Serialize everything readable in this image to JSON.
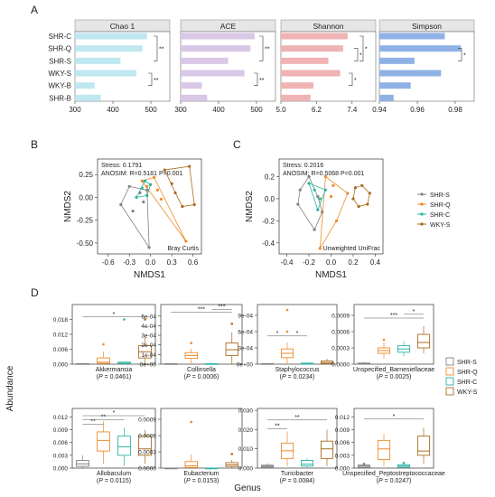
{
  "panels": {
    "A": "A",
    "B": "B",
    "C": "C",
    "D": "D"
  },
  "colors": {
    "chao1": "#bfe7f0",
    "ace": "#d9c7e6",
    "shannon": "#f0b3b3",
    "simpson": "#8fb2e6",
    "shr_s": "#808080",
    "shr_q": "#ee8a2a",
    "shr_c": "#2ab3a3",
    "wky_s": "#a86b1f"
  },
  "panelA": {
    "groups": [
      "SHR-C",
      "SHR-Q",
      "SHR-S",
      "WKY-S",
      "WKY-B",
      "SHR-B"
    ],
    "facets": [
      {
        "name": "Chao 1",
        "key": "chao1",
        "min": 300,
        "max": 550,
        "ticks": [
          "300",
          "400",
          "500"
        ],
        "tickVals": [
          300,
          400,
          500
        ],
        "values": [
          490,
          478,
          420,
          462,
          352,
          368
        ],
        "sig": [
          {
            "from": 0,
            "to": 2,
            "label": "**"
          },
          {
            "from": 3,
            "to": 4,
            "label": "**"
          }
        ]
      },
      {
        "name": "ACE",
        "key": "ace",
        "min": 300,
        "max": 550,
        "ticks": [
          "300",
          "400",
          "500"
        ],
        "tickVals": [
          300,
          400,
          500
        ],
        "values": [
          495,
          484,
          425,
          468,
          356,
          370
        ],
        "sig": [
          {
            "from": 0,
            "to": 2,
            "label": "**"
          },
          {
            "from": 3,
            "to": 4,
            "label": "**"
          }
        ]
      },
      {
        "name": "Shannon",
        "key": "shannon",
        "min": 5.0,
        "max": 8.2,
        "ticks": [
          "5.0",
          "6.2",
          "7.4"
        ],
        "tickVals": [
          5.0,
          6.2,
          7.4
        ],
        "values": [
          7.25,
          7.1,
          6.6,
          7.0,
          6.1,
          6.0
        ],
        "sig": [
          {
            "from": 0,
            "to": 2,
            "label": "*"
          },
          {
            "from": 1,
            "to": 2,
            "label": "*"
          },
          {
            "from": 3,
            "to": 4,
            "label": "*"
          }
        ]
      },
      {
        "name": "Simpson",
        "key": "simpson",
        "min": 0.94,
        "max": 0.99,
        "ticks": [
          "0.94",
          "0.96",
          "0.98"
        ],
        "tickVals": [
          0.94,
          0.96,
          0.98
        ],
        "values": [
          0.9745,
          0.983,
          0.9585,
          0.9725,
          0.9565,
          0.9475
        ],
        "sig": [
          {
            "from": 1,
            "to": 2,
            "label": "*"
          }
        ]
      }
    ]
  },
  "panelB": {
    "stress": "Stress: 0.1791",
    "anosim": "ANOSIM: R=0.5181  P=0.001",
    "method": "Bray Curtis",
    "xlabel": "NMDS1",
    "ylabel": "NMDS2",
    "xticks": [
      "-0.6",
      "-0.3",
      "0.0",
      "0.3",
      "0.6"
    ],
    "xtickVals": [
      -0.6,
      -0.3,
      0.0,
      0.3,
      0.6
    ],
    "yticks": [
      "0.25",
      "0.00",
      "-0.25",
      "-0.50"
    ],
    "ytickVals": [
      0.25,
      0.0,
      -0.25,
      -0.5
    ],
    "xlim": [
      -0.75,
      0.72
    ],
    "ylim": [
      -0.62,
      0.42
    ],
    "groups": [
      {
        "name": "SHR-S",
        "color": "shr_s",
        "points": [
          [
            -0.42,
            -0.08
          ],
          [
            -0.3,
            0.12
          ],
          [
            -0.25,
            -0.15
          ],
          [
            -0.1,
            -0.05
          ],
          [
            -0.02,
            -0.55
          ],
          [
            -0.15,
            0.05
          ],
          [
            -0.05,
            0.08
          ]
        ]
      },
      {
        "name": "SHR-Q",
        "color": "shr_q",
        "points": [
          [
            -0.12,
            0.18
          ],
          [
            -0.05,
            0.12
          ],
          [
            0.05,
            0.22
          ],
          [
            0.5,
            -0.48
          ],
          [
            0.15,
            -0.02
          ],
          [
            0.1,
            0.08
          ]
        ]
      },
      {
        "name": "SHR-C",
        "color": "shr_c",
        "points": [
          [
            -0.2,
            0.0
          ],
          [
            -0.12,
            0.1
          ],
          [
            -0.08,
            0.18
          ],
          [
            -0.05,
            0.02
          ],
          [
            0.0,
            0.14
          ]
        ]
      },
      {
        "name": "WKY-S",
        "color": "wky_s",
        "points": [
          [
            0.2,
            0.3
          ],
          [
            0.55,
            0.34
          ],
          [
            0.62,
            -0.08
          ],
          [
            0.45,
            -0.1
          ],
          [
            0.35,
            0.05
          ],
          [
            0.3,
            0.15
          ]
        ]
      }
    ]
  },
  "panelC": {
    "stress": "Stress: 0.2016",
    "anosim": "ANOSIM: R=0.5068  P=0.001",
    "method": "Unweighted UniFrac",
    "xlabel": "NMDS1",
    "ylabel": "NMDS2",
    "xticks": [
      "-0.4",
      "-0.2",
      "0.0",
      "0.2",
      "0.4"
    ],
    "xtickVals": [
      -0.4,
      -0.2,
      0.0,
      0.2,
      0.4
    ],
    "yticks": [
      "0.2",
      "0.0",
      "-0.2",
      "-0.4"
    ],
    "ytickVals": [
      0.2,
      0.0,
      -0.2,
      -0.4
    ],
    "xlim": [
      -0.47,
      0.47
    ],
    "ylim": [
      -0.5,
      0.36
    ],
    "groups": [
      {
        "name": "SHR-S",
        "color": "shr_s",
        "points": [
          [
            -0.28,
            0.08
          ],
          [
            -0.3,
            -0.05
          ],
          [
            -0.15,
            -0.28
          ],
          [
            -0.08,
            -0.12
          ],
          [
            -0.2,
            0.2
          ],
          [
            -0.12,
            0.02
          ]
        ]
      },
      {
        "name": "SHR-Q",
        "color": "shr_q",
        "points": [
          [
            -0.05,
            0.2
          ],
          [
            0.02,
            0.12
          ],
          [
            0.15,
            0.05
          ],
          [
            -0.1,
            -0.45
          ],
          [
            0.05,
            -0.2
          ],
          [
            0.0,
            0.02
          ]
        ]
      },
      {
        "name": "SHR-C",
        "color": "shr_c",
        "points": [
          [
            -0.2,
            0.14
          ],
          [
            -0.15,
            0.08
          ],
          [
            -0.1,
            0.0
          ],
          [
            -0.05,
            0.08
          ],
          [
            -0.12,
            -0.1
          ]
        ]
      },
      {
        "name": "WKY-S",
        "color": "wky_s",
        "points": [
          [
            0.2,
            0.0
          ],
          [
            0.22,
            0.1
          ],
          [
            0.28,
            0.12
          ],
          [
            0.35,
            0.05
          ],
          [
            0.33,
            -0.05
          ],
          [
            0.25,
            -0.07
          ]
        ]
      }
    ]
  },
  "legend": [
    "SHR-S",
    "SHR-Q",
    "SHR-C",
    "WKY-S"
  ],
  "panelD": {
    "ylabel": "Abundance",
    "xlabel": "Genus",
    "genera": [
      {
        "name": "Akkermansia",
        "p": "0.0461",
        "max": 0.024,
        "ticks": [
          "0.000",
          "0.006",
          "0.012",
          "0.018"
        ],
        "tickVals": [
          0,
          0.006,
          0.012,
          0.018
        ],
        "boxes": [
          [
            0,
            0,
            0,
            0.0002,
            0.0005
          ],
          [
            0,
            0.0003,
            0.0008,
            0.0025,
            0.005
          ],
          [
            0,
            0.0002,
            0.0004,
            0.0008,
            0.001
          ],
          [
            0,
            0.0025,
            0.005,
            0.0075,
            0.011
          ]
        ],
        "outliers": [
          [
            1,
            0.008
          ],
          [
            2,
            0.018
          ],
          [
            3,
            0.018
          ]
        ],
        "sig": [
          {
            "from": 0,
            "to": 3,
            "label": "*",
            "level": 0.019
          }
        ]
      },
      {
        "name": "Collinsella",
        "p": "0.0006",
        "max": 0.00062,
        "ticks": [
          "0e+00",
          "1e-04",
          "2e-04",
          "3e-04",
          "4e-04",
          "5e-04"
        ],
        "tickVals": [
          0,
          0.0001,
          0.0002,
          0.0003,
          0.0004,
          0.0005
        ],
        "boxes": [
          [
            0,
            0,
            0,
            5e-06,
            1e-05
          ],
          [
            0,
            6e-05,
            9e-05,
            0.00012,
            0.00016
          ],
          [
            0,
            0,
            0,
            5e-06,
            1e-05
          ],
          [
            0,
            9e-05,
            0.00015,
            0.00022,
            0.00033
          ]
        ],
        "outliers": [
          [
            1,
            0.00022
          ],
          [
            3,
            0.00042
          ]
        ],
        "sig": [
          {
            "from": 0,
            "to": 3,
            "label": "***",
            "level": 0.00054
          },
          {
            "from": 2,
            "to": 3,
            "label": "***",
            "level": 0.00057
          }
        ]
      },
      {
        "name": "Staphylococcus",
        "p": "0.0234",
        "max": 0.0011,
        "ticks": [
          "0e+00",
          "3e-04",
          "6e-04",
          "9e-04"
        ],
        "tickVals": [
          0,
          0.0003,
          0.0006,
          0.0009
        ],
        "boxes": [
          [
            0,
            0,
            0,
            1e-05,
            2e-05
          ],
          [
            0,
            0.00012,
            0.0002,
            0.00028,
            0.0004
          ],
          [
            0,
            0,
            1e-05,
            2e-05,
            3e-05
          ],
          [
            0,
            1e-05,
            3e-05,
            6e-05,
            0.0001
          ]
        ],
        "outliers": [
          [
            1,
            0.001
          ],
          [
            1,
            0.0006
          ]
        ],
        "sig": [
          {
            "from": 0,
            "to": 1,
            "label": "*",
            "level": 0.00052
          },
          {
            "from": 1,
            "to": 2,
            "label": "*",
            "level": 0.00052
          }
        ]
      },
      {
        "name": "Unspecified_Barnesiellaceae",
        "p": "0.0025",
        "max": 0.0011,
        "ticks": [
          "0.0000",
          "0.0003",
          "0.0006",
          "0.0009"
        ],
        "tickVals": [
          0,
          0.0003,
          0.0006,
          0.0009
        ],
        "boxes": [
          [
            0,
            0,
            1e-05,
            2e-05,
            4e-05
          ],
          [
            0.0001,
            0.0002,
            0.00025,
            0.0003,
            0.0004
          ],
          [
            0.00015,
            0.00022,
            0.00028,
            0.00034,
            0.00042
          ],
          [
            0.0002,
            0.0003,
            0.0004,
            0.00055,
            0.0007
          ]
        ],
        "outliers": [
          [
            1,
            0.00045
          ]
        ],
        "sig": [
          {
            "from": 0,
            "to": 3,
            "label": "***",
            "level": 0.00085
          },
          {
            "from": 2,
            "to": 3,
            "label": "*",
            "level": 0.00092
          }
        ]
      },
      {
        "name": "Allobaculum",
        "p": "0.0115",
        "max": 0.014,
        "ticks": [
          "0.000",
          "0.003",
          "0.006",
          "0.009",
          "0.012"
        ],
        "tickVals": [
          0,
          0.003,
          0.006,
          0.009,
          0.012
        ],
        "boxes": [
          [
            0,
            0.0004,
            0.001,
            0.0018,
            0.003
          ],
          [
            0.001,
            0.004,
            0.0065,
            0.0085,
            0.011
          ],
          [
            0.0005,
            0.003,
            0.005,
            0.0075,
            0.0095
          ],
          [
            0.001,
            0.003,
            0.0045,
            0.0075,
            0.009
          ]
        ],
        "outliers": [],
        "sig": [
          {
            "from": 0,
            "to": 1,
            "label": "**",
            "level": 0.0103
          },
          {
            "from": 0,
            "to": 2,
            "label": "**",
            "level": 0.0113
          },
          {
            "from": 0,
            "to": 3,
            "label": "*",
            "level": 0.0123
          }
        ]
      },
      {
        "name": "Eubacterium",
        "p": "0.0153",
        "max": 0.0011,
        "ticks": [
          "0.0000",
          "0.0003",
          "0.0006",
          "0.0009"
        ],
        "tickVals": [
          0,
          0.0003,
          0.0006,
          0.0009
        ],
        "boxes": [
          [
            0,
            0,
            0,
            0,
            1e-05
          ],
          [
            0,
            1e-05,
            4e-05,
            0.00012,
            0.00025
          ],
          [
            0,
            0,
            0,
            0,
            1e-05
          ],
          [
            0,
            3e-05,
            6e-05,
            0.0001,
            0.00015
          ]
        ],
        "outliers": [
          [
            1,
            0.00085
          ],
          [
            3,
            0.00026
          ]
        ],
        "sig": []
      },
      {
        "name": "Turicibacter",
        "p": "0.0084",
        "max": 0.031,
        "ticks": [
          "0.000",
          "0.010",
          "0.020",
          "0.030"
        ],
        "tickVals": [
          0,
          0.01,
          0.02,
          0.03
        ],
        "boxes": [
          [
            0,
            0.0005,
            0.001,
            0.0015,
            0.0025
          ],
          [
            0.001,
            0.005,
            0.009,
            0.013,
            0.019
          ],
          [
            0,
            0.001,
            0.002,
            0.004,
            0.005
          ],
          [
            0.001,
            0.005,
            0.01,
            0.014,
            0.02
          ]
        ],
        "outliers": [],
        "sig": [
          {
            "from": 0,
            "to": 1,
            "label": "**",
            "level": 0.0205
          },
          {
            "from": 0,
            "to": 3,
            "label": "**",
            "level": 0.025
          }
        ]
      },
      {
        "name": "Unspecified_Peptostreptococcaceae",
        "p": "0.0247",
        "max": 0.014,
        "ticks": [
          "0.000",
          "0.003",
          "0.006",
          "0.009",
          "0.012"
        ],
        "tickVals": [
          0,
          0.003,
          0.006,
          0.009,
          0.012
        ],
        "boxes": [
          [
            0,
            0.0002,
            0.0005,
            0.0007,
            0.001
          ],
          [
            0.0005,
            0.002,
            0.0045,
            0.0065,
            0.008
          ],
          [
            0,
            0.0002,
            0.0005,
            0.0008,
            0.0012
          ],
          [
            0.001,
            0.003,
            0.004,
            0.0075,
            0.0095
          ]
        ],
        "outliers": [
          [
            0,
            0.001
          ],
          [
            2,
            0.0012
          ]
        ],
        "sig": [
          {
            "from": 0,
            "to": 3,
            "label": "*",
            "level": 0.0115
          }
        ]
      }
    ]
  }
}
